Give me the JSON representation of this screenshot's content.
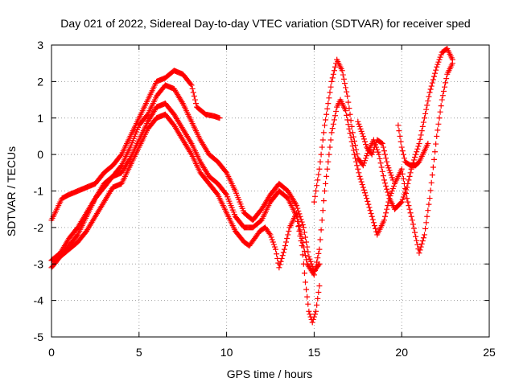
{
  "chart_data": {
    "type": "scatter",
    "title": "Day 021 of 2022, Sidereal Day-to-day VTEC variation (SDTVAR) for receiver sped",
    "xlabel": "GPS time / hours",
    "ylabel": "SDTVAR / TECUs",
    "xlim": [
      0,
      25
    ],
    "ylim": [
      -5,
      3
    ],
    "xticks": [
      "0",
      "5",
      "10",
      "15",
      "20",
      "25"
    ],
    "yticks": [
      "-5",
      "-4",
      "-3",
      "-2",
      "-1",
      "0",
      "1",
      "2",
      "3"
    ],
    "grid": true,
    "marker": "+",
    "color": "#ff0000",
    "series": [
      {
        "x": [
          0.0,
          0.3,
          0.6,
          1.0,
          1.5,
          2.0,
          2.5,
          3.0,
          3.5,
          4.0,
          4.5,
          5.0,
          5.5,
          6.0,
          6.5,
          7.0,
          7.5,
          8.0,
          8.3,
          8.8,
          9.3,
          9.6
        ],
        "y": [
          -1.8,
          -1.5,
          -1.2,
          -1.1,
          -1.0,
          -0.9,
          -0.8,
          -0.5,
          -0.3,
          0.0,
          0.5,
          1.0,
          1.5,
          2.0,
          2.1,
          2.3,
          2.2,
          1.9,
          1.3,
          1.1,
          1.05,
          1.0
        ]
      },
      {
        "x": [
          0.0,
          0.5,
          1.0,
          1.5,
          2.0,
          2.5,
          3.0,
          3.5,
          4.0,
          4.5,
          5.0,
          5.5,
          6.0,
          6.5,
          7.0,
          7.5,
          8.0,
          8.5,
          9.0,
          9.5,
          10.0,
          10.5,
          11.0,
          11.5,
          12.0,
          12.5,
          13.0,
          13.5,
          14.0,
          14.4,
          14.7,
          15.0,
          15.3
        ],
        "y": [
          -2.9,
          -2.7,
          -2.3,
          -2.0,
          -1.6,
          -1.2,
          -0.8,
          -0.6,
          -0.3,
          0.2,
          0.8,
          1.1,
          1.6,
          1.9,
          1.8,
          1.4,
          0.9,
          0.4,
          0.0,
          -0.2,
          -0.5,
          -1.0,
          -1.6,
          -1.8,
          -1.5,
          -1.1,
          -0.8,
          -1.0,
          -1.4,
          -2.0,
          -2.8,
          -3.2,
          -3.0
        ]
      },
      {
        "x": [
          0.0,
          0.5,
          1.0,
          1.5,
          2.0,
          2.5,
          3.0,
          3.5,
          4.0,
          4.5,
          5.0,
          5.5,
          6.0,
          6.5,
          7.0,
          7.5,
          8.0,
          8.5,
          9.0,
          9.5,
          10.0,
          10.5,
          11.0,
          11.5,
          12.0,
          12.5,
          13.0,
          13.5,
          14.0,
          14.3,
          14.5,
          14.7,
          14.9,
          15.1,
          15.3
        ],
        "y": [
          -2.9,
          -2.8,
          -2.5,
          -2.2,
          -1.7,
          -1.2,
          -0.9,
          -0.6,
          -0.5,
          -0.1,
          0.4,
          0.9,
          1.3,
          1.4,
          1.1,
          0.7,
          0.3,
          -0.2,
          -0.6,
          -0.8,
          -1.1,
          -1.7,
          -2.0,
          -2.0,
          -1.8,
          -1.3,
          -1.0,
          -1.2,
          -1.7,
          -2.5,
          -3.5,
          -4.3,
          -4.6,
          -4.3,
          -3.6
        ]
      },
      {
        "x": [
          0.0,
          0.5,
          1.0,
          1.5,
          2.0,
          2.5,
          3.0,
          3.5,
          4.0,
          4.5,
          5.0,
          5.5,
          6.0,
          6.5,
          7.0,
          7.5,
          8.0,
          8.5,
          9.0,
          9.5,
          10.0,
          10.5,
          11.0,
          11.3,
          11.6,
          11.9,
          12.2,
          12.5,
          12.8,
          13.0,
          13.3,
          13.6,
          14.0,
          14.3,
          14.6,
          15.0,
          15.3,
          15.6,
          16.0,
          16.3,
          16.5,
          16.8,
          17.0,
          17.3,
          17.6,
          18.0,
          18.3,
          18.6,
          19.0,
          19.3,
          19.6,
          20.0,
          20.3,
          20.6,
          21.0,
          21.3,
          21.6,
          22.0,
          22.3,
          22.6,
          22.9
        ],
        "y": [
          -3.1,
          -2.8,
          -2.6,
          -2.4,
          -2.1,
          -1.7,
          -1.3,
          -0.9,
          -0.8,
          -0.3,
          0.2,
          0.7,
          1.0,
          1.1,
          0.8,
          0.4,
          0.0,
          -0.5,
          -0.8,
          -1.1,
          -1.6,
          -2.1,
          -2.4,
          -2.5,
          -2.3,
          -2.1,
          -2.0,
          -2.2,
          -2.6,
          -3.1,
          -2.6,
          -2.0,
          -1.6,
          -2.3,
          -3.0,
          -3.3,
          -2.6,
          -1.0,
          0.6,
          1.3,
          1.5,
          1.2,
          0.7,
          0.0,
          -0.6,
          -1.2,
          -1.7,
          -2.2,
          -1.8,
          -1.2,
          -0.8,
          -0.4,
          -1.2,
          -1.8,
          -2.7,
          -2.2,
          -1.2,
          0.5,
          1.5,
          2.2,
          2.5
        ]
      },
      {
        "x": [
          15.0,
          15.3,
          15.6,
          16.0,
          16.3,
          16.6,
          16.9,
          17.2,
          17.5,
          17.8,
          18.1,
          18.4,
          18.7,
          19.0,
          19.3,
          19.6,
          20.0,
          20.3,
          20.6,
          21.0,
          21.3,
          21.6,
          22.0,
          22.3,
          22.6,
          22.9
        ],
        "y": [
          -1.3,
          -0.4,
          0.8,
          2.0,
          2.6,
          2.3,
          1.6,
          0.6,
          -0.1,
          -0.3,
          0.1,
          0.4,
          0.0,
          -0.7,
          -1.2,
          -1.5,
          -1.3,
          -0.9,
          -0.3,
          0.3,
          1.0,
          1.7,
          2.4,
          2.8,
          2.9,
          2.6
        ]
      },
      {
        "x": [
          19.8,
          20.0,
          20.2,
          20.5,
          20.8,
          21.0,
          21.2,
          21.5
        ],
        "y": [
          0.8,
          0.2,
          -0.2,
          -0.3,
          -0.3,
          -0.2,
          0.0,
          0.3
        ]
      },
      {
        "x": [
          17.5,
          17.8,
          18.0,
          18.3,
          18.6,
          18.9,
          19.2,
          19.5
        ],
        "y": [
          0.9,
          0.5,
          0.2,
          0.0,
          0.4,
          0.3,
          -0.3,
          -0.7
        ]
      }
    ]
  }
}
